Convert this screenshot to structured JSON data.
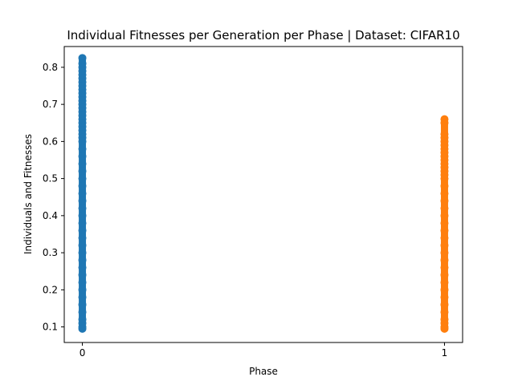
{
  "chart_data": {
    "type": "scatter",
    "title": "Individual Fitnesses per Generation per Phase | Dataset: CIFAR10",
    "xlabel": "Phase",
    "ylabel": "Individuals and Fitnesses",
    "xticks": [
      0,
      1
    ],
    "yticks": [
      0.1,
      0.2,
      0.3,
      0.4,
      0.5,
      0.6,
      0.7,
      0.8
    ],
    "xlim": [
      -0.05,
      1.05
    ],
    "ylim": [
      0.058,
      0.856
    ],
    "grid": false,
    "series": [
      {
        "x": 0,
        "color": "#1f77b4",
        "min": 0.095,
        "max": 0.825,
        "values": [
          0.825,
          0.81,
          0.8,
          0.79,
          0.78,
          0.77,
          0.76,
          0.75,
          0.74,
          0.73,
          0.72,
          0.71,
          0.7,
          0.69,
          0.68,
          0.67,
          0.66,
          0.65,
          0.64,
          0.63,
          0.62,
          0.61,
          0.6,
          0.58,
          0.56,
          0.54,
          0.52,
          0.5,
          0.48,
          0.46,
          0.44,
          0.42,
          0.4,
          0.38,
          0.36,
          0.34,
          0.32,
          0.3,
          0.28,
          0.26,
          0.24,
          0.22,
          0.2,
          0.18,
          0.16,
          0.14,
          0.12,
          0.11,
          0.1,
          0.095
        ]
      },
      {
        "x": 1,
        "color": "#ff7f0e",
        "min": 0.095,
        "max": 0.66,
        "values": [
          0.66,
          0.65,
          0.62,
          0.61,
          0.6,
          0.59,
          0.58,
          0.57,
          0.56,
          0.55,
          0.54,
          0.53,
          0.52,
          0.51,
          0.5,
          0.48,
          0.46,
          0.44,
          0.42,
          0.4,
          0.38,
          0.36,
          0.34,
          0.32,
          0.3,
          0.28,
          0.26,
          0.24,
          0.22,
          0.2,
          0.18,
          0.16,
          0.14,
          0.12,
          0.11,
          0.1,
          0.095
        ]
      }
    ]
  }
}
